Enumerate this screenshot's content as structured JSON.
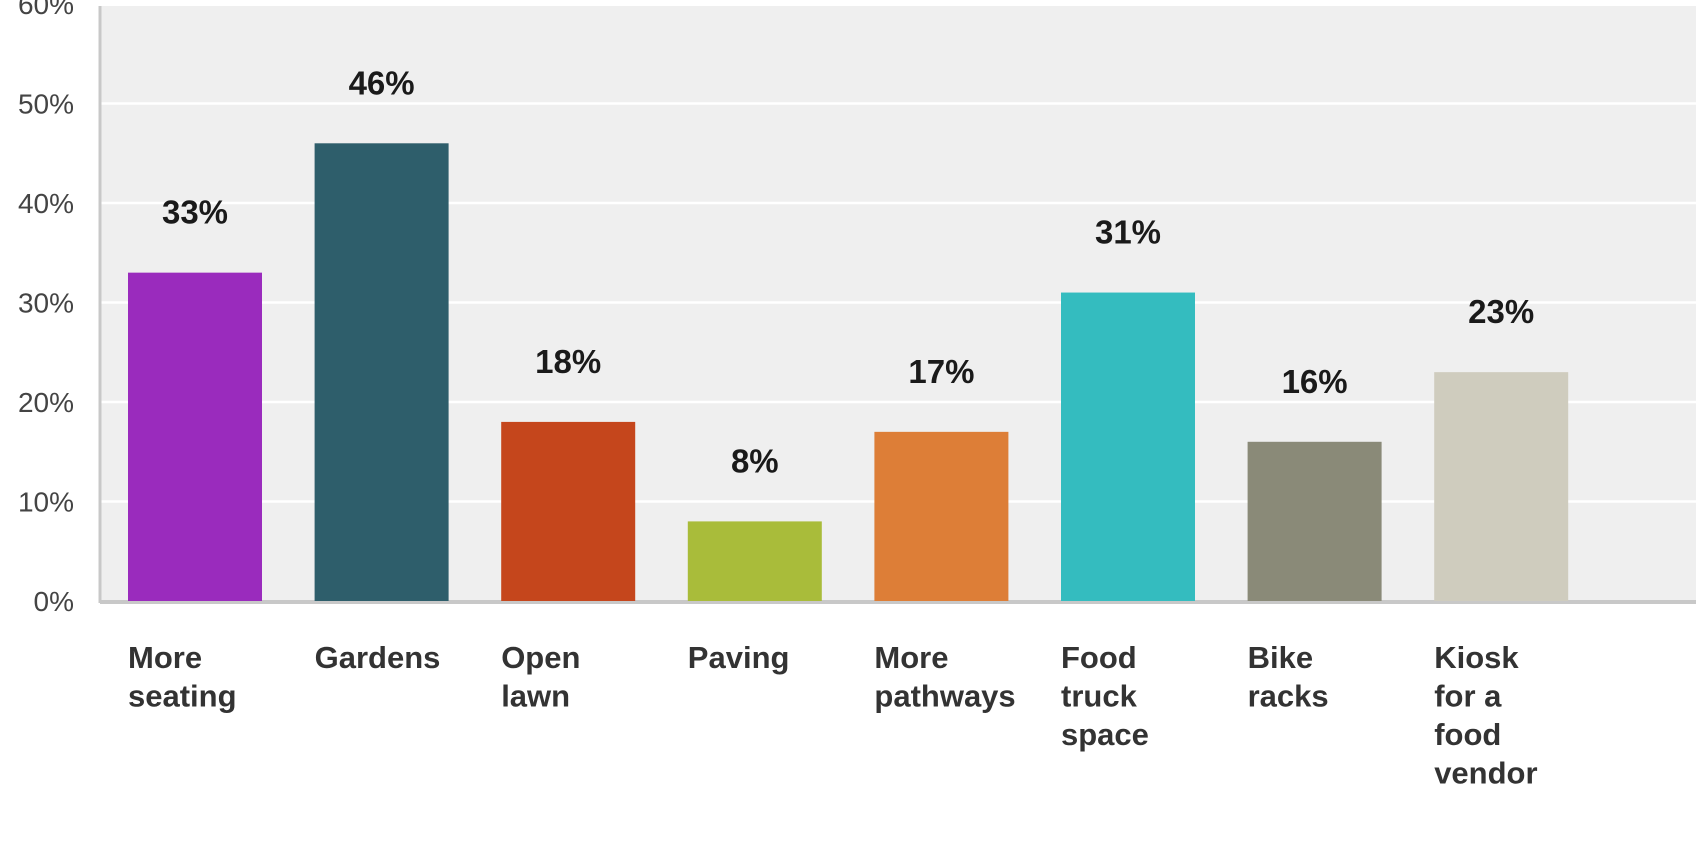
{
  "chart_data": {
    "type": "bar",
    "title": "",
    "xlabel": "",
    "ylabel": "",
    "ylim": [
      0,
      60
    ],
    "y_ticks": [
      "0%",
      "10%",
      "20%",
      "30%",
      "40%",
      "50%",
      "60%"
    ],
    "grid": true,
    "categories": [
      [
        "More",
        "seating"
      ],
      [
        "Gardens"
      ],
      [
        "Open",
        "lawn"
      ],
      [
        "Paving"
      ],
      [
        "More",
        "pathways"
      ],
      [
        "Food",
        "truck",
        "space"
      ],
      [
        "Bike",
        "racks"
      ],
      [
        "Kiosk",
        "for a",
        "food",
        "vendor"
      ]
    ],
    "values": [
      33,
      46,
      18,
      8,
      17,
      31,
      16,
      23
    ],
    "data_labels": [
      "33%",
      "46%",
      "18%",
      "8%",
      "17%",
      "31%",
      "16%",
      "23%"
    ],
    "colors": [
      "#9a2bbd",
      "#2e5e6b",
      "#c5461c",
      "#a9bc3a",
      "#dd7e37",
      "#34bcbf",
      "#8a8a78",
      "#cfccbe"
    ],
    "plot_background": "#efefef",
    "grid_color": "#ffffff",
    "axis_color": "#c8c8c8"
  }
}
